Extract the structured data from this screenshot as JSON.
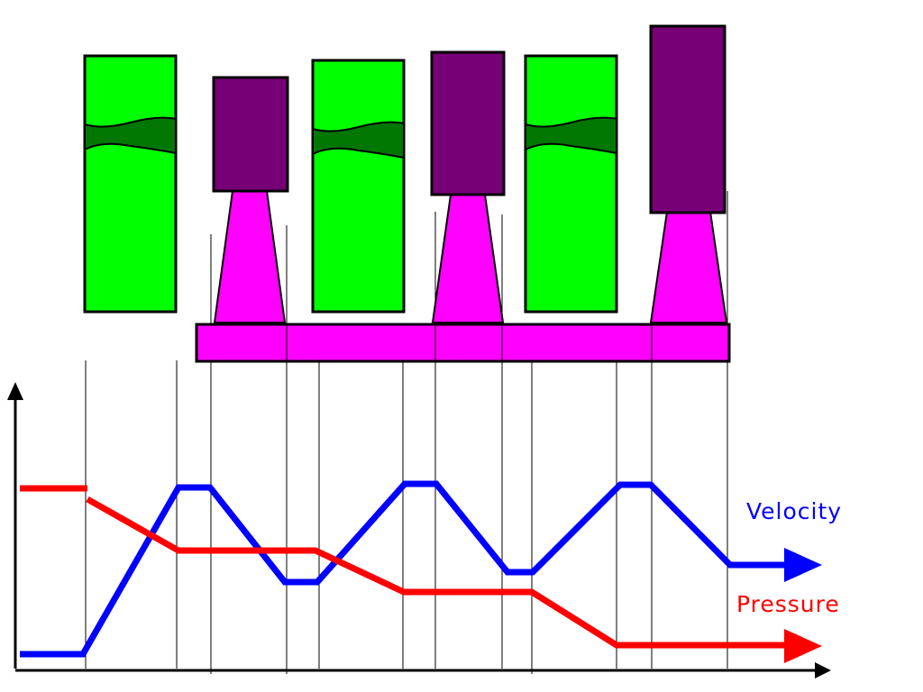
{
  "labels": {
    "velocity": "Velocity",
    "pressure": "Pressure"
  },
  "colors": {
    "velocity": "#0000ff",
    "pressure": "#ff0000",
    "fixed_blade": "#00ff00",
    "fixed_blade_band": "#007700",
    "moving_blade": "#770077",
    "nozzle": "#ff00ff",
    "axis": "#000000",
    "guide": "#000000"
  },
  "blades": {
    "fixed": [
      {
        "name": "fixed-blade-1",
        "pinch": "waist"
      },
      {
        "name": "fixed-blade-2",
        "pinch": "waist"
      },
      {
        "name": "fixed-blade-3",
        "pinch": "waist"
      }
    ],
    "moving": [
      {
        "name": "moving-blade-1"
      },
      {
        "name": "moving-blade-2"
      },
      {
        "name": "moving-blade-3"
      }
    ],
    "nozzles": [
      {
        "name": "nozzle-1"
      },
      {
        "name": "nozzle-2"
      },
      {
        "name": "nozzle-3"
      }
    ]
  },
  "plot": {
    "x_axis": {
      "has_arrow": true
    },
    "y_axis": {
      "has_arrow": true
    },
    "velocity_trend": [
      "low",
      "high",
      "mid",
      "high",
      "mid",
      "high",
      "mid"
    ],
    "pressure_trend": [
      "high",
      "decreasing",
      "constant",
      "decreasing",
      "constant",
      "decreasing",
      "low"
    ]
  }
}
